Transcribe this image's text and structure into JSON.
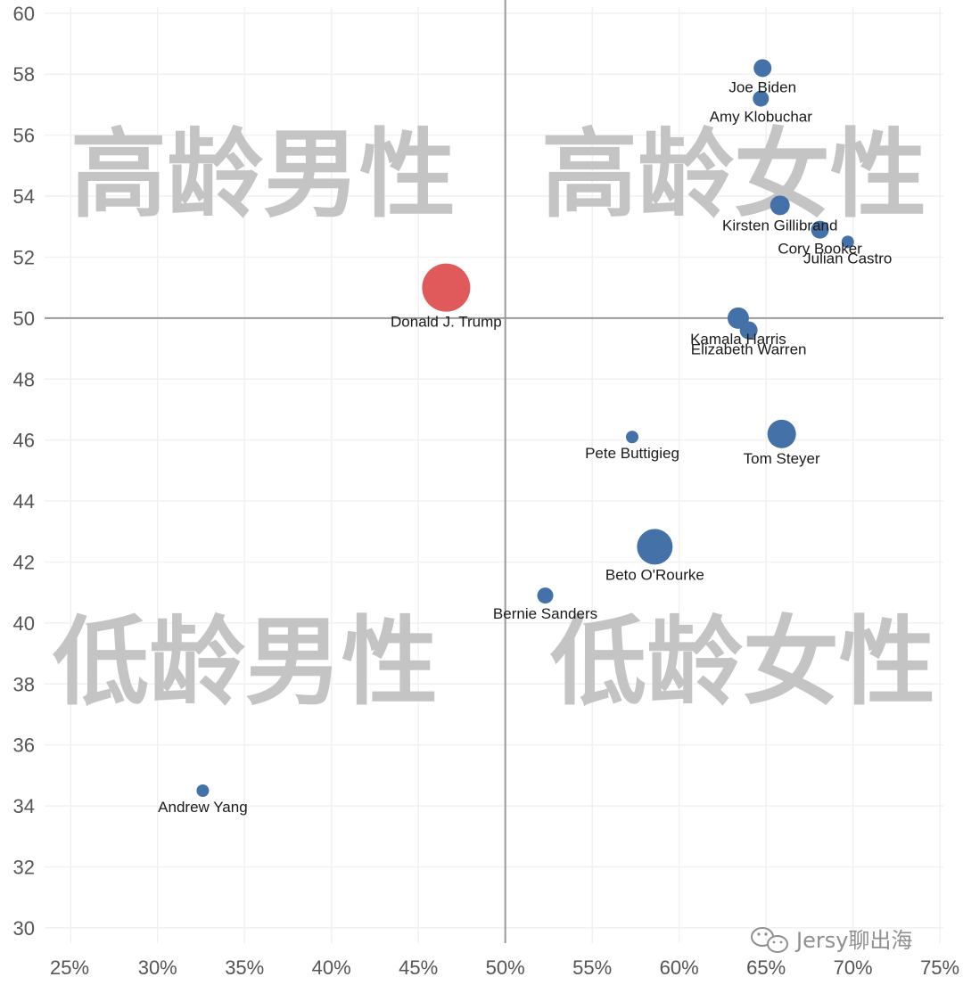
{
  "chart_data": {
    "type": "scatter",
    "x_ticks": [
      "25%",
      "30%",
      "35%",
      "40%",
      "45%",
      "50%",
      "55%",
      "60%",
      "65%",
      "70%",
      "75%"
    ],
    "y_ticks": [
      "30",
      "32",
      "34",
      "36",
      "38",
      "40",
      "42",
      "44",
      "46",
      "48",
      "50",
      "52",
      "54",
      "56",
      "58",
      "60"
    ],
    "xlim": [
      23.5,
      75.2
    ],
    "ylim": [
      29.5,
      60.2
    ],
    "x_ref": 50,
    "y_ref": 50,
    "quadrants": {
      "top_left": "高龄男性",
      "top_right": "高龄女性",
      "bottom_left": "低龄男性",
      "bottom_right": "低龄女性"
    },
    "points": [
      {
        "name": "Joe Biden",
        "x": 64.8,
        "y": 58.2,
        "size": 10,
        "color": "#4472a8"
      },
      {
        "name": "Amy Klobuchar",
        "x": 64.7,
        "y": 57.2,
        "size": 9,
        "color": "#4472a8"
      },
      {
        "name": "Kirsten Gillibrand",
        "x": 65.8,
        "y": 53.7,
        "size": 11,
        "color": "#4472a8"
      },
      {
        "name": "Cory Booker",
        "x": 68.1,
        "y": 52.9,
        "size": 10,
        "color": "#4472a8"
      },
      {
        "name": "Julian Castro",
        "x": 69.7,
        "y": 52.5,
        "size": 7,
        "color": "#4472a8"
      },
      {
        "name": "Donald J. Trump",
        "x": 46.6,
        "y": 51.0,
        "size": 27,
        "color": "#e05a5c"
      },
      {
        "name": "Kamala Harris",
        "x": 63.4,
        "y": 50.0,
        "size": 12,
        "color": "#4472a8"
      },
      {
        "name": "Elizabeth Warren",
        "x": 64.0,
        "y": 49.6,
        "size": 10,
        "color": "#4472a8"
      },
      {
        "name": "Pete Buttigieg",
        "x": 57.3,
        "y": 46.1,
        "size": 7,
        "color": "#4472a8"
      },
      {
        "name": "Tom Steyer",
        "x": 65.9,
        "y": 46.2,
        "size": 16,
        "color": "#4472a8"
      },
      {
        "name": "Beto O'Rourke",
        "x": 58.6,
        "y": 42.5,
        "size": 20,
        "color": "#4472a8"
      },
      {
        "name": "Bernie Sanders",
        "x": 52.3,
        "y": 40.9,
        "size": 9,
        "color": "#4472a8"
      },
      {
        "name": "Andrew Yang",
        "x": 32.6,
        "y": 34.5,
        "size": 7,
        "color": "#4472a8"
      }
    ]
  },
  "watermark": {
    "icon": "wechat-icon",
    "text": "Jersy聊出海"
  }
}
